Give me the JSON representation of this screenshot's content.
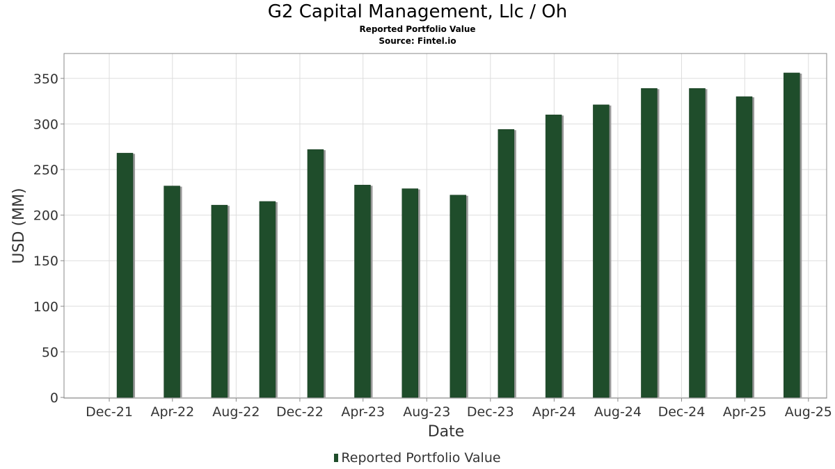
{
  "header": {
    "title": "G2 Capital Management, Llc / Oh",
    "subtitle": "Reported Portfolio Value",
    "source": "Source: Fintel.io"
  },
  "legend": {
    "label": "Reported Portfolio Value"
  },
  "colors": {
    "bar": "#1f4d2b",
    "bar_shadow": "#9a9a9a",
    "grid": "#dddddd",
    "axis": "#888888"
  },
  "chart_data": {
    "type": "bar",
    "title": "G2 Capital Management, Llc / Oh",
    "subtitle": "Reported Portfolio Value",
    "xlabel": "Date",
    "ylabel": "USD (MM)",
    "ylim": [
      0,
      375
    ],
    "yticks": [
      0,
      50,
      100,
      150,
      200,
      250,
      300,
      350
    ],
    "xlim": [
      "2021-09-08",
      "2025-08-31"
    ],
    "xticks": [
      {
        "label": "Dec-21",
        "date": "2021-12-01"
      },
      {
        "label": "Apr-22",
        "date": "2022-04-01"
      },
      {
        "label": "Aug-22",
        "date": "2022-08-01"
      },
      {
        "label": "Dec-22",
        "date": "2022-12-01"
      },
      {
        "label": "Apr-23",
        "date": "2023-04-01"
      },
      {
        "label": "Aug-23",
        "date": "2023-08-01"
      },
      {
        "label": "Dec-23",
        "date": "2023-12-01"
      },
      {
        "label": "Apr-24",
        "date": "2024-04-01"
      },
      {
        "label": "Aug-24",
        "date": "2024-08-01"
      },
      {
        "label": "Dec-24",
        "date": "2024-12-01"
      },
      {
        "label": "Apr-25",
        "date": "2025-04-01"
      },
      {
        "label": "Aug-25",
        "date": "2025-08-01"
      }
    ],
    "grid": true,
    "legend_position": "bottom",
    "series": [
      {
        "name": "Reported Portfolio Value",
        "points": [
          {
            "x": "2021-12-31",
            "y": 268
          },
          {
            "x": "2022-03-31",
            "y": 232
          },
          {
            "x": "2022-06-30",
            "y": 211
          },
          {
            "x": "2022-09-30",
            "y": 215
          },
          {
            "x": "2022-12-31",
            "y": 272
          },
          {
            "x": "2023-03-31",
            "y": 233
          },
          {
            "x": "2023-06-30",
            "y": 229
          },
          {
            "x": "2023-09-30",
            "y": 222
          },
          {
            "x": "2023-12-31",
            "y": 294
          },
          {
            "x": "2024-03-31",
            "y": 310
          },
          {
            "x": "2024-06-30",
            "y": 321
          },
          {
            "x": "2024-09-30",
            "y": 339
          },
          {
            "x": "2024-12-31",
            "y": 339
          },
          {
            "x": "2025-03-31",
            "y": 330
          },
          {
            "x": "2025-06-30",
            "y": 356
          }
        ]
      }
    ]
  }
}
